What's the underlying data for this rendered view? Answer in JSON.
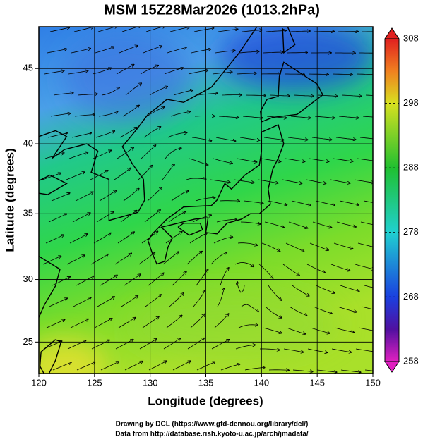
{
  "title": "MSM 15Z28Mar2026 (1013.2hPa)",
  "map": {
    "xlabel": "Longitude (degrees)",
    "ylabel": "Latitude  (degrees)",
    "projection": "mercator",
    "grid": true,
    "xlim": [
      120,
      150
    ],
    "ylim": [
      22.4,
      47.6
    ],
    "xticks": [
      120,
      125,
      130,
      135,
      140,
      145,
      150
    ],
    "yticks": [
      25,
      30,
      35,
      40,
      45
    ]
  },
  "colorbar": {
    "clim": [
      258,
      308
    ],
    "ticks": [
      258,
      268,
      278,
      288,
      298,
      308
    ]
  },
  "footer": [
    "Drawing by DCL (https://www.gfd-dennou.org/library/dcl/)",
    "Data from http://database.rish.kyoto-u.ac.jp/arch/jmadata/"
  ]
}
